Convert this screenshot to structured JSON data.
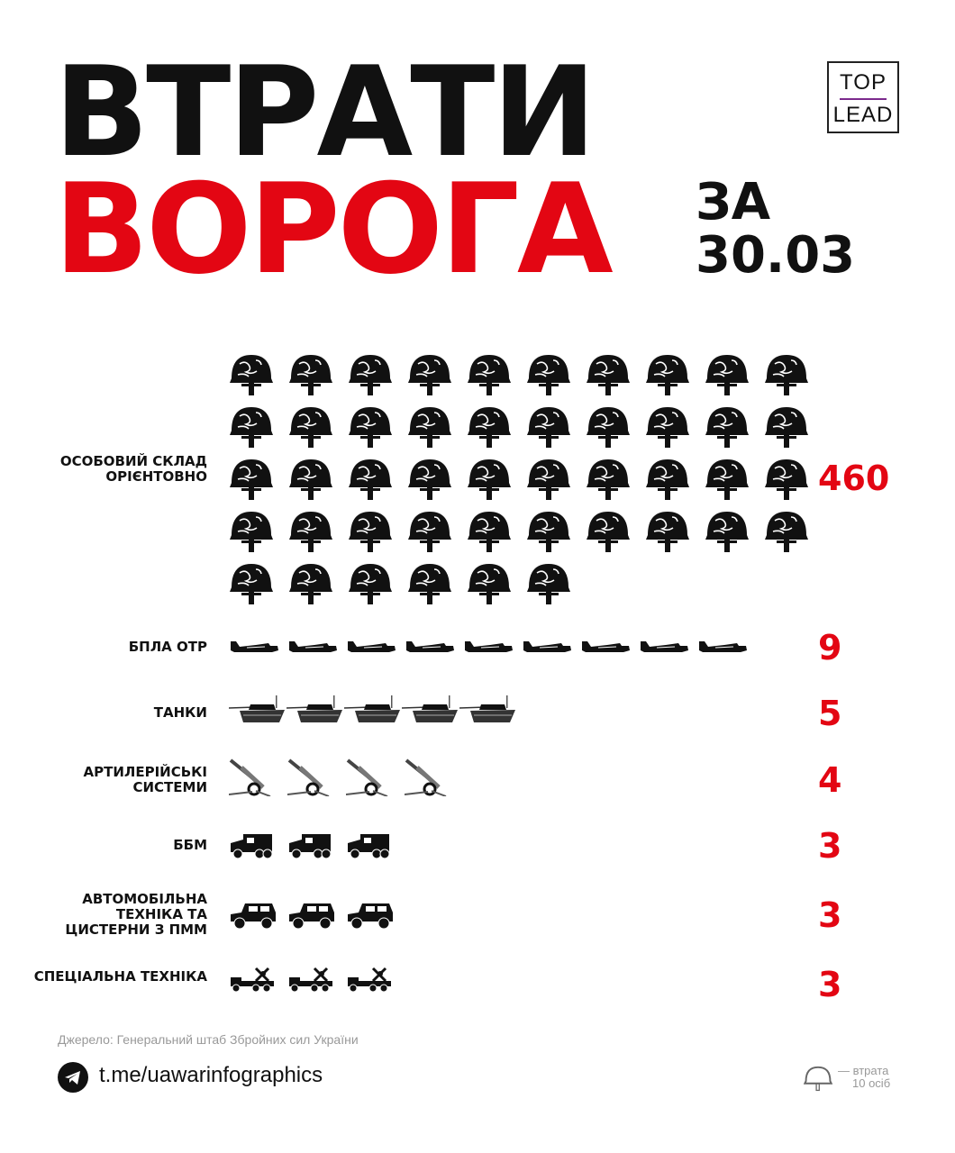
{
  "title": {
    "line1": "ВТРАТИ",
    "line2": "ВОРОГА",
    "za": "ЗА",
    "date": "30.03"
  },
  "logo": {
    "top": "TOP",
    "bottom": "LEAD"
  },
  "colors": {
    "accent": "#e30613",
    "text": "#111111",
    "muted": "#999999"
  },
  "chart_data": {
    "type": "pictogram",
    "categories": [
      "ОСОБОВИЙ СКЛАД ОРІЄНТОВНО",
      "БПЛА ОТР",
      "ТАНКИ",
      "АРТИЛЕРІЙСЬКІ СИСТЕМИ",
      "ББМ",
      "АВТОМОБІЛЬНА ТЕХНІКА ТА ЦИСТЕРНИ З ПММ",
      "СПЕЦІАЛЬНА ТЕХНІКА"
    ],
    "values": [
      460,
      9,
      5,
      4,
      3,
      3,
      3
    ],
    "labels": [
      "460",
      "9",
      "5",
      "4",
      "3",
      "3",
      "3"
    ],
    "icons": [
      "helmet-icon",
      "drone-icon",
      "tank-icon",
      "artillery-icon",
      "apc-icon",
      "jeep-icon",
      "special-vehicle-icon"
    ],
    "icon_counts": [
      46,
      9,
      5,
      4,
      3,
      3,
      3
    ],
    "note": "1 helmet = 10 persons"
  },
  "footer": {
    "source": "Джерело: Генеральний штаб Збройних сил України",
    "link": "t.me/uawarinfographics",
    "legend_line1": "— втрата",
    "legend_line2": "10 осіб"
  }
}
